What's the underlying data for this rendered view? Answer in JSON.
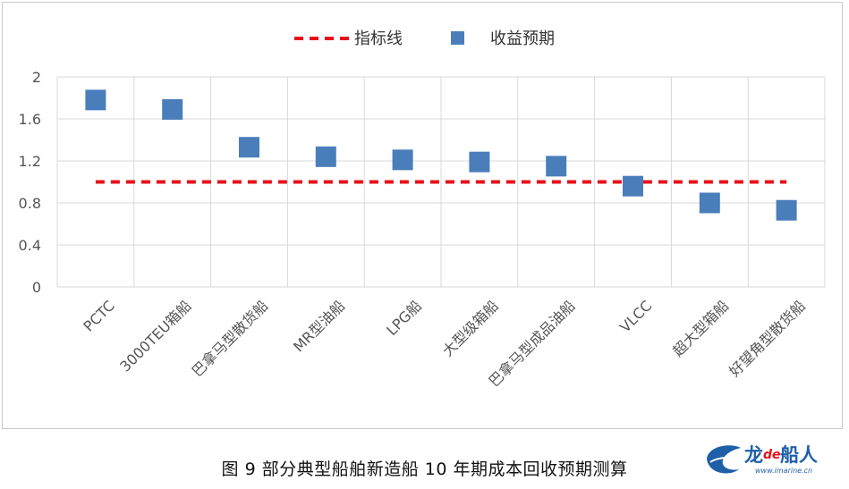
{
  "caption": "图 9 部分典型船舶新造船 10 年期成本回收预期测算",
  "logo": {
    "brand_a": "龙",
    "brand_b": "de",
    "brand_c": "船人",
    "url": "www.imarine.cn"
  },
  "colors": {
    "marker": "#4a7ebb",
    "target_line": "#e8101a",
    "grid": "#d9d9d9"
  },
  "chart_data": {
    "type": "scatter",
    "categories": [
      "PCTC",
      "3000TEU箱船",
      "巴拿马型散货船",
      "MR型油船",
      "LPG船",
      "大型级箱船",
      "巴拿马型成品油船",
      "VLCC",
      "超大型箱船",
      "好望角型散货船"
    ],
    "series": [
      {
        "name": "收益预期",
        "values": [
          1.78,
          1.69,
          1.33,
          1.24,
          1.21,
          1.19,
          1.15,
          0.96,
          0.8,
          0.73
        ]
      }
    ],
    "reference_line": {
      "name": "指标线",
      "value": 1.0
    },
    "yticks": [
      "0",
      "0.4",
      "0.8",
      "1.2",
      "1.6",
      "2"
    ],
    "ylim": [
      0,
      2
    ],
    "grid": true,
    "legend_position": "top-center"
  }
}
